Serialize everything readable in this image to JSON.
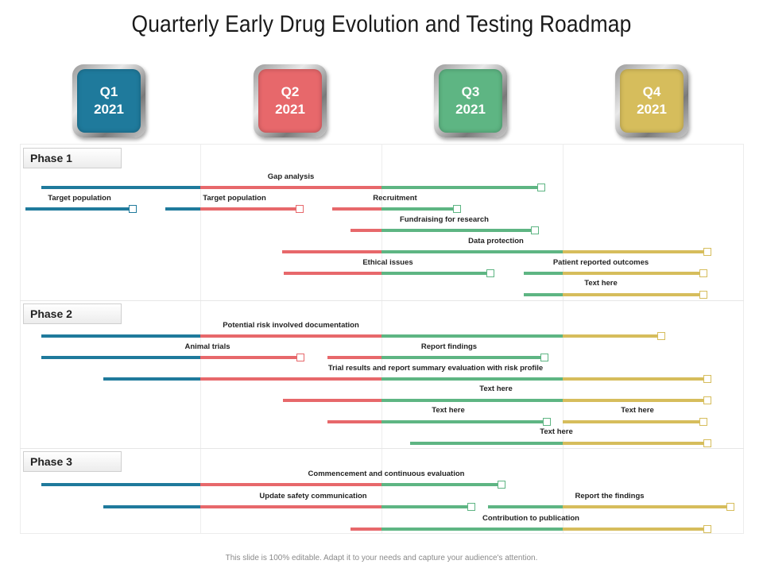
{
  "title": "Quarterly Early Drug Evolution and Testing Roadmap",
  "colors": {
    "q1": "#1f7a9c",
    "q2": "#e7686b",
    "q3": "#5eb583",
    "q4": "#d6bd5c"
  },
  "quarters": [
    {
      "label": "Q1",
      "year": "2021"
    },
    {
      "label": "Q2",
      "year": "2021"
    },
    {
      "label": "Q3",
      "year": "2021"
    },
    {
      "label": "Q4",
      "year": "2021"
    }
  ],
  "phases": [
    {
      "label": "Phase 1"
    },
    {
      "label": "Phase 2"
    },
    {
      "label": "Phase 3"
    }
  ],
  "tasks": [
    {
      "name": "Gap analysis",
      "phase": 1
    },
    {
      "name": "Target population",
      "phase": 1
    },
    {
      "name": "Target population",
      "phase": 1
    },
    {
      "name": "Recruitment",
      "phase": 1
    },
    {
      "name": "Fundraising for research",
      "phase": 1
    },
    {
      "name": "Data protection",
      "phase": 1
    },
    {
      "name": "Ethical issues",
      "phase": 1
    },
    {
      "name": "Patient reported outcomes",
      "phase": 1
    },
    {
      "name": "Text here",
      "phase": 1
    },
    {
      "name": "Potential risk involved documentation",
      "phase": 2
    },
    {
      "name": "Animal trials",
      "phase": 2
    },
    {
      "name": "Report findings",
      "phase": 2
    },
    {
      "name": "Trial results and report summary evaluation with risk profile",
      "phase": 2
    },
    {
      "name": "Text here",
      "phase": 2
    },
    {
      "name": "Text here",
      "phase": 2
    },
    {
      "name": "Text here",
      "phase": 2
    },
    {
      "name": "Text here",
      "phase": 2
    },
    {
      "name": "Commencement and continuous evaluation",
      "phase": 3
    },
    {
      "name": "Update safety communication",
      "phase": 3
    },
    {
      "name": "Report the findings",
      "phase": 3
    },
    {
      "name": "Contribution to publication",
      "phase": 3
    }
  ],
  "footer": "This slide is 100% editable. Adapt it to your needs and capture your audience's attention."
}
